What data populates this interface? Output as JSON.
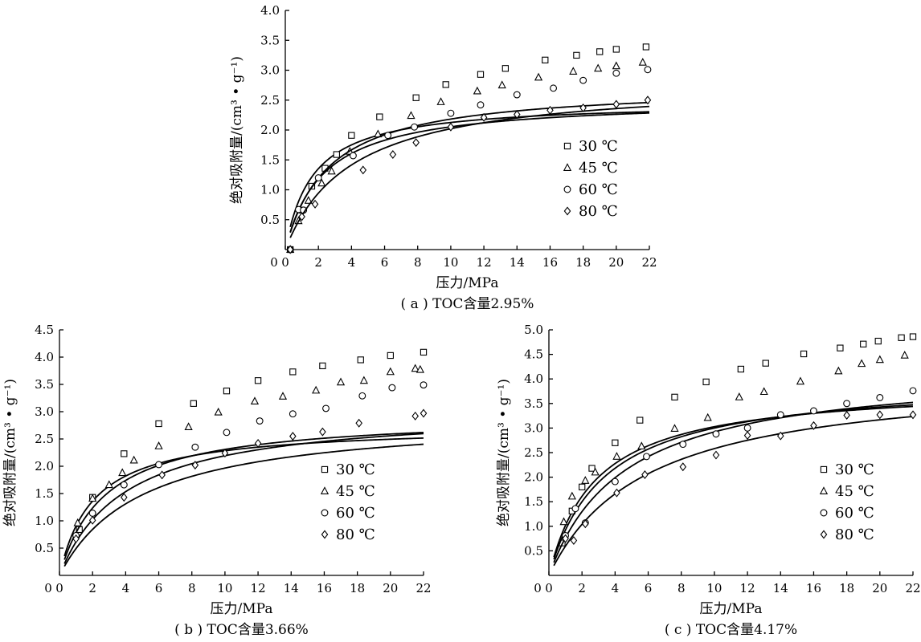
{
  "chart_data": [
    {
      "type": "scatter",
      "caption": "( a ) TOC含量2.95%",
      "xlabel": "压力/MPa",
      "ylabel": "绝对吸附量/(cm³ • g⁻¹)",
      "xlim": [
        0,
        22
      ],
      "ylim": [
        0,
        4.0
      ],
      "xticks": [
        "0",
        "2",
        "4",
        "6",
        "8",
        "10",
        "12",
        "14",
        "16",
        "18",
        "20",
        "22"
      ],
      "yticks": [
        "0.5",
        "1.0",
        "1.5",
        "2.0",
        "2.5",
        "3.0",
        "3.5",
        "4.0"
      ],
      "legend_position": "center-right",
      "series": [
        {
          "name": "30 ℃",
          "marker": "square",
          "x": [
            0.3,
            1.0,
            1.6,
            2.4,
            3.1,
            4.0,
            5.7,
            7.9,
            9.7,
            11.8,
            13.3,
            15.7,
            17.6,
            19.0,
            20.0,
            21.8
          ],
          "y": [
            0,
            0.66,
            1.06,
            1.36,
            1.59,
            1.91,
            2.22,
            2.54,
            2.76,
            2.93,
            3.03,
            3.17,
            3.25,
            3.31,
            3.35,
            3.39
          ],
          "fit": [
            0.6,
            2.48
          ]
        },
        {
          "name": "45 ℃",
          "marker": "triangle",
          "x": [
            0.3,
            0.8,
            1.4,
            2.2,
            2.8,
            3.9,
            5.6,
            7.6,
            9.4,
            11.6,
            13.1,
            15.3,
            17.4,
            18.9,
            20.0,
            21.6
          ],
          "y": [
            0,
            0.48,
            0.82,
            1.11,
            1.31,
            1.64,
            1.93,
            2.24,
            2.47,
            2.65,
            2.75,
            2.88,
            2.98,
            3.03,
            3.07,
            3.13
          ],
          "fit": [
            0.44,
            2.52
          ]
        },
        {
          "name": "60 ℃",
          "marker": "circle",
          "x": [
            0.3,
            0.8,
            1.1,
            2.0,
            4.1,
            6.2,
            7.8,
            10.0,
            11.8,
            14.0,
            16.2,
            18.0,
            20.0,
            21.9
          ],
          "y": [
            0,
            0.67,
            0.66,
            1.2,
            1.57,
            1.91,
            2.05,
            2.28,
            2.42,
            2.59,
            2.7,
            2.83,
            2.95,
            3.01
          ],
          "fit": [
            0.385,
            2.75
          ]
        },
        {
          "name": "80 ℃",
          "marker": "diamond",
          "x": [
            0.3,
            1.0,
            1.8,
            4.7,
            6.5,
            7.9,
            10.0,
            12.0,
            14.0,
            16.0,
            18.0,
            20.0,
            21.9
          ],
          "y": [
            0,
            0.55,
            0.76,
            1.33,
            1.59,
            1.79,
            2.05,
            2.21,
            2.26,
            2.33,
            2.37,
            2.43,
            2.5
          ],
          "fit": [
            0.25,
            2.83
          ]
        }
      ]
    },
    {
      "type": "scatter",
      "caption": "( b ) TOC含量3.66%",
      "xlabel": "压力/MPa",
      "ylabel": "绝对吸附量/(cm³ • g⁻¹)",
      "xlim": [
        0,
        22
      ],
      "ylim": [
        0,
        4.5
      ],
      "xticks": [
        "0",
        "2",
        "4",
        "6",
        "8",
        "10",
        "12",
        "14",
        "16",
        "18",
        "20",
        "22"
      ],
      "yticks": [
        "0.5",
        "1.0",
        "1.5",
        "2.0",
        "2.5",
        "3.0",
        "3.5",
        "4.0",
        "4.5"
      ],
      "legend_position": "center-right",
      "series": [
        {
          "name": "30 ℃",
          "marker": "square",
          "x": [
            1.2,
            2.0,
            3.9,
            6.0,
            8.1,
            10.1,
            12.0,
            14.1,
            15.9,
            18.2,
            20.0,
            22.0
          ],
          "y": [
            0.84,
            1.43,
            2.23,
            2.78,
            3.15,
            3.38,
            3.57,
            3.73,
            3.84,
            3.95,
            4.03,
            4.09
          ],
          "fit": [
            0.49,
            2.75
          ]
        },
        {
          "name": "45 ℃",
          "marker": "triangle",
          "x": [
            1.1,
            2.0,
            3.0,
            3.8,
            4.5,
            6.0,
            7.8,
            9.6,
            11.8,
            13.5,
            15.5,
            17.0,
            18.4,
            20.0,
            21.5,
            21.8
          ],
          "y": [
            0.96,
            1.41,
            1.66,
            1.88,
            2.11,
            2.37,
            2.72,
            2.99,
            3.19,
            3.28,
            3.39,
            3.54,
            3.57,
            3.73,
            3.79,
            3.77
          ],
          "fit": [
            0.36,
            2.95
          ]
        },
        {
          "name": "60 ℃",
          "marker": "circle",
          "x": [
            1.0,
            2.0,
            3.9,
            6.0,
            8.2,
            10.1,
            12.1,
            14.1,
            16.1,
            18.3,
            20.1,
            22.0
          ],
          "y": [
            0.73,
            1.14,
            1.66,
            2.03,
            2.35,
            2.62,
            2.83,
            2.96,
            3.06,
            3.29,
            3.44,
            3.49
          ],
          "fit": [
            0.25,
            3.07
          ]
        },
        {
          "name": "80 ℃",
          "marker": "diamond",
          "x": [
            1.0,
            2.0,
            3.9,
            6.2,
            8.2,
            10.0,
            12.0,
            14.1,
            15.9,
            18.1,
            21.5,
            22.0
          ],
          "y": [
            0.67,
            1.01,
            1.43,
            1.84,
            2.02,
            2.24,
            2.42,
            2.55,
            2.63,
            2.79,
            2.92,
            2.97
          ],
          "fit": [
            0.2,
            2.95
          ]
        }
      ]
    },
    {
      "type": "scatter",
      "caption": "( c ) TOC含量4.17%",
      "xlabel": "压力/MPa",
      "ylabel": "绝对吸附量/(cm³ • g⁻¹)",
      "xlim": [
        0,
        22
      ],
      "ylim": [
        0,
        5.0
      ],
      "xticks": [
        "0",
        "2",
        "4",
        "6",
        "8",
        "10",
        "12",
        "14",
        "16",
        "18",
        "20",
        "22"
      ],
      "yticks": [
        "0.5",
        "1.0",
        "1.5",
        "2.0",
        "2.5",
        "3.0",
        "3.5",
        "4.0",
        "4.5",
        "5.0"
      ],
      "legend_position": "bottom-right",
      "series": [
        {
          "name": "30 ℃",
          "marker": "square",
          "x": [
            0.8,
            1.4,
            2.0,
            2.6,
            4.0,
            5.5,
            7.6,
            9.5,
            11.6,
            13.1,
            15.4,
            17.6,
            19.0,
            19.9,
            21.3,
            22.0
          ],
          "y": [
            0.66,
            1.31,
            1.8,
            2.18,
            2.7,
            3.16,
            3.63,
            3.94,
            4.2,
            4.32,
            4.51,
            4.63,
            4.71,
            4.77,
            4.84,
            4.86
          ],
          "fit": [
            0.355,
            3.88
          ]
        },
        {
          "name": "45 ℃",
          "marker": "triangle",
          "x": [
            0.9,
            1.4,
            2.2,
            2.8,
            4.1,
            5.6,
            7.6,
            9.6,
            11.5,
            13.0,
            15.2,
            17.5,
            18.9,
            20.0,
            21.5
          ],
          "y": [
            1.09,
            1.61,
            1.93,
            2.1,
            2.42,
            2.63,
            2.99,
            3.21,
            3.63,
            3.74,
            3.95,
            4.16,
            4.31,
            4.39,
            4.48
          ],
          "fit": [
            0.3,
            4.0
          ]
        },
        {
          "name": "60 ℃",
          "marker": "circle",
          "x": [
            1.0,
            1.6,
            2.2,
            4.0,
            5.9,
            8.1,
            10.1,
            12.0,
            14.0,
            16.0,
            18.0,
            20.0,
            22.0
          ],
          "y": [
            0.81,
            1.36,
            1.07,
            1.91,
            2.42,
            2.67,
            2.88,
            3.0,
            3.27,
            3.35,
            3.5,
            3.62,
            3.76
          ],
          "fit": [
            0.22,
            4.25
          ]
        },
        {
          "name": "80 ℃",
          "marker": "diamond",
          "x": [
            1.0,
            1.5,
            2.2,
            4.1,
            5.8,
            8.1,
            10.1,
            12.0,
            14.0,
            16.0,
            18.0,
            20.0,
            22.0
          ],
          "y": [
            0.75,
            0.71,
            1.05,
            1.68,
            2.05,
            2.21,
            2.45,
            2.85,
            2.84,
            3.05,
            3.26,
            3.27,
            3.27
          ],
          "fit": [
            0.17,
            4.1
          ]
        }
      ]
    }
  ]
}
